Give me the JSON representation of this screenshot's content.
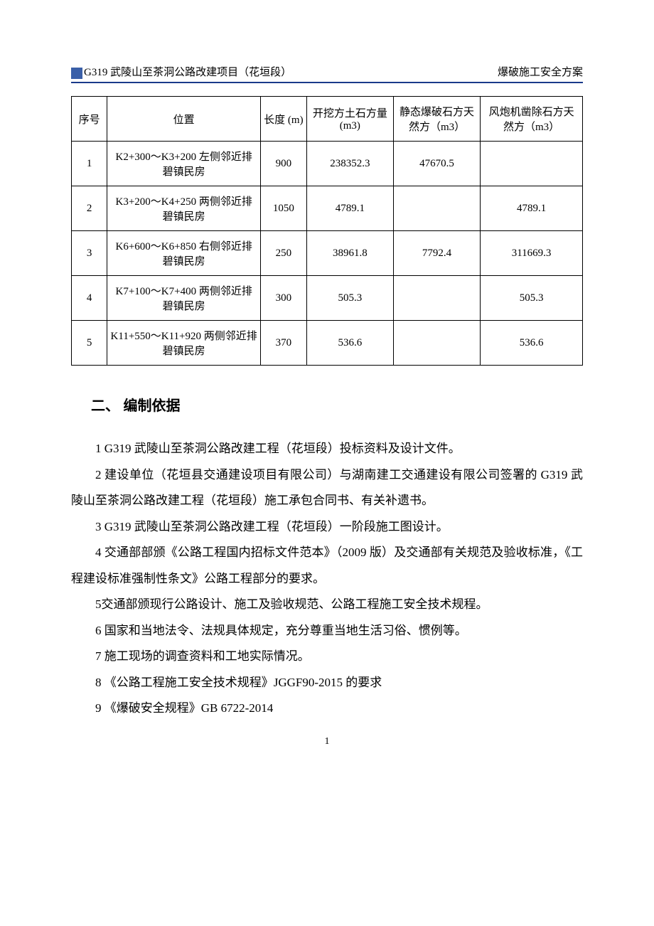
{
  "header": {
    "left": "G319 武陵山至茶洞公路改建项目（花垣段）",
    "right": "爆破施工安全方案"
  },
  "table": {
    "columns": [
      "序号",
      "位置",
      "长度 (m)",
      "开挖方土石方量(m3)",
      "静态爆破石方天然方（m3）",
      "风炮机凿除石方天然方（m3）"
    ],
    "rows": [
      [
        "1",
        "K2+300～K3+200 左侧邻近排碧镇民房",
        "900",
        "238352.3",
        "47670.5",
        ""
      ],
      [
        "2",
        "K3+200～K4+250 两侧邻近排碧镇民房",
        "1050",
        "4789.1",
        "",
        "4789.1"
      ],
      [
        "3",
        "K6+600～K6+850 右侧邻近排碧镇民房",
        "250",
        "38961.8",
        "7792.4",
        "311669.3"
      ],
      [
        "4",
        "K7+100～K7+400 两侧邻近排碧镇民房",
        "300",
        "505.3",
        "",
        "505.3"
      ],
      [
        "5",
        "K11+550～K11+920 两侧邻近排碧镇民房",
        "370",
        "536.6",
        "",
        "536.6"
      ]
    ]
  },
  "section_title": "二、 编制依据",
  "paragraphs": [
    "1 G319 武陵山至茶洞公路改建工程（花垣段）投标资料及设计文件。",
    "2 建设单位（花垣县交通建设项目有限公司）与湖南建工交通建设有限公司签署的 G319 武陵山至茶洞公路改建工程（花垣段）施工承包合同书、有关补遗书。",
    "3 G319 武陵山至茶洞公路改建工程（花垣段）一阶段施工图设计。",
    "4 交通部部颁《公路工程国内招标文件范本》（2009 版）及交通部有关规范及验收标准，《工程建设标准强制性条文》公路工程部分的要求。",
    "5交通部颁现行公路设计、施工及验收规范、公路工程施工安全技术规程。",
    "6 国家和当地法令、法规具体规定，充分尊重当地生活习俗、惯例等。",
    "7 施工现场的调查资料和工地实际情况。",
    "8 《公路工程施工安全技术规程》JGGF90-2015 的要求",
    "9 《爆破安全规程》GB 6722-2014"
  ],
  "page_number": "1"
}
